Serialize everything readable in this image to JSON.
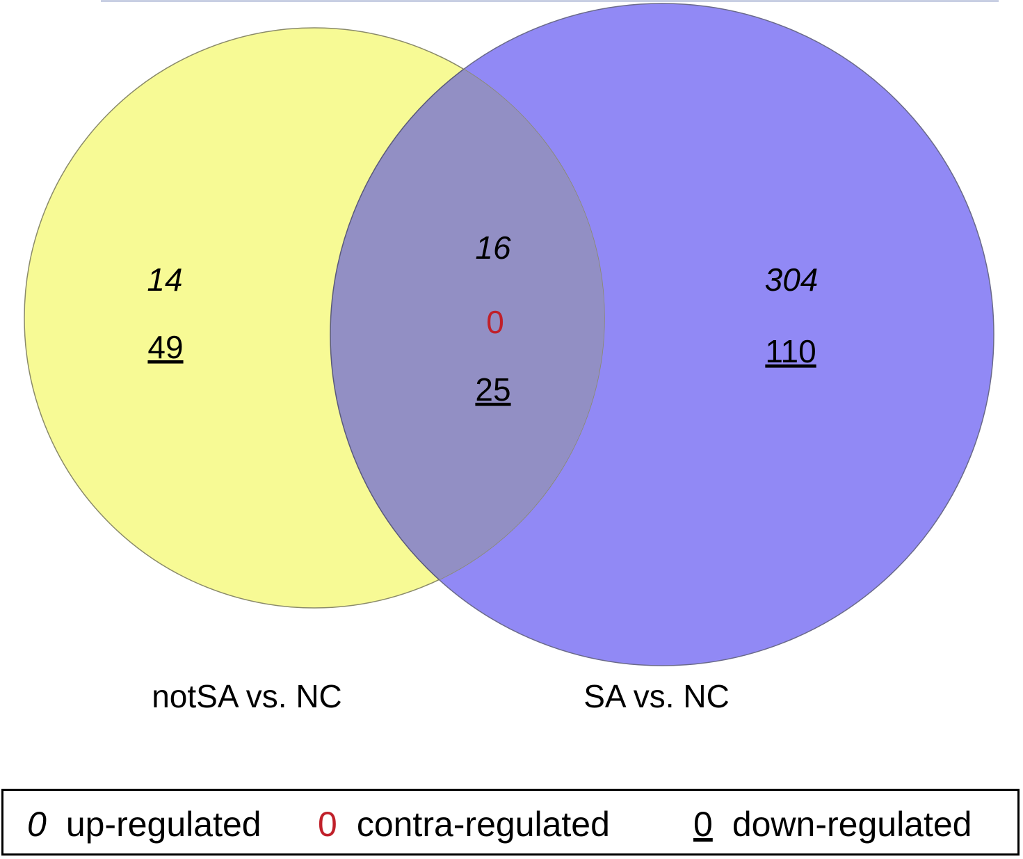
{
  "diagram": {
    "type": "venn",
    "colors": {
      "left_set": "#f5f77a",
      "right_set": "#6c63f0",
      "overlap": "#9491c6",
      "contra": "#c0202a"
    },
    "sets": [
      {
        "label": "notSA vs. NC"
      },
      {
        "label": "SA vs. NC"
      }
    ],
    "regions": {
      "left_only": {
        "up": "14",
        "down": "49"
      },
      "overlap": {
        "up": "16",
        "contra": "0",
        "down": "25"
      },
      "right_only": {
        "up": "304",
        "down": "110"
      }
    }
  },
  "legend": {
    "items": [
      {
        "symbol": "0",
        "text": "up-regulated",
        "style": "italic"
      },
      {
        "symbol": "0",
        "text": "contra-regulated",
        "style": "red"
      },
      {
        "symbol": "0",
        "text": "down-regulated",
        "style": "underline"
      }
    ]
  }
}
